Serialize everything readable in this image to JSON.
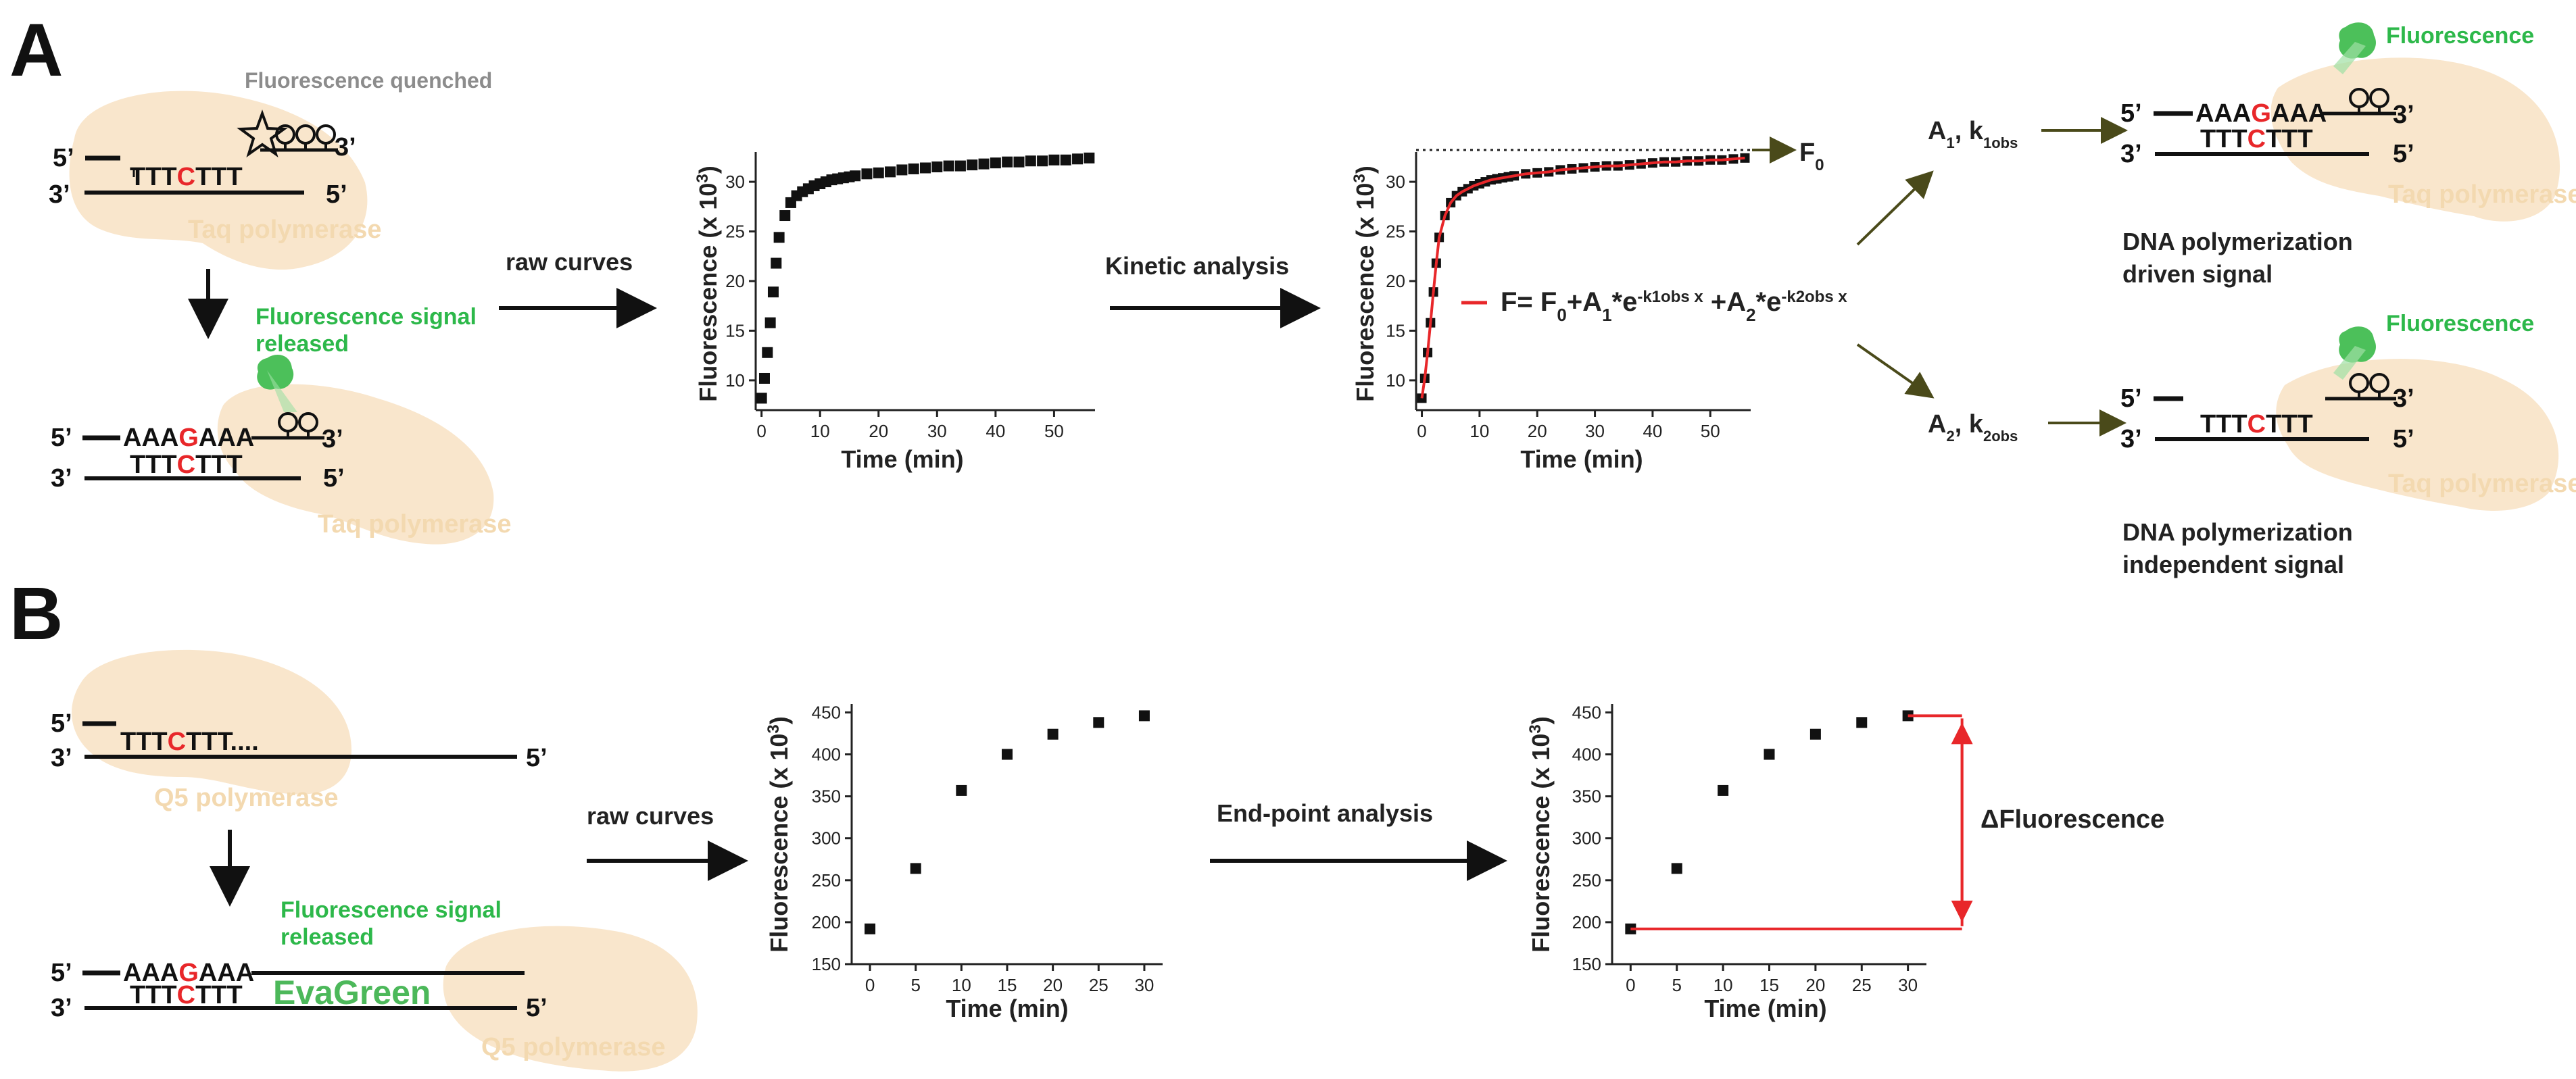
{
  "panels": {
    "a": "A",
    "b": "B"
  },
  "labels": {
    "quenched": "Fluorescence quenched",
    "signal_released_1": "Fluorescence signal",
    "signal_released_2": "released",
    "taq": "Taq polymerase",
    "q5": "Q5 polymerase",
    "evagreen": "EvaGreen",
    "fluorescence": "Fluorescence",
    "raw_curves": "raw curves",
    "kinetic": "Kinetic analysis",
    "endpoint": "End-point analysis",
    "driven_1": "DNA polymerization",
    "driven_2": "driven signal",
    "indep_1": "DNA polymerization",
    "indep_2": "independent signal",
    "delta": "ΔFluorescence",
    "f0": "F",
    "f0_sub": "0",
    "a1": "A",
    "a1_sub": "1",
    "k1": ", k",
    "k1_sub": "1obs",
    "a2": "A",
    "a2_sub": "2",
    "k2": ", k",
    "k2_sub": "2obs",
    "five_prime": "5’",
    "three_prime": "3’",
    "equation": {
      "p1": "F= F",
      "s0": "0",
      "p2": "+A",
      "s1": "1",
      "p3": "*e",
      "e1": "-k1obs x",
      "p4": " +A",
      "s2": "2",
      "p5": "*e",
      "e2": "-k2obs x"
    }
  },
  "seq": {
    "ttt_pre": "TTT",
    "c": "C",
    "ttt_post": "TTT",
    "aaa_pre": "AAA",
    "g": "G",
    "aaa_post": "AAA",
    "dots": "...."
  },
  "colors": {
    "accent_red": "#e8272a",
    "green": "#2db84a",
    "enzyme": "#f9e6cc",
    "arrow_olive": "#4a4a1a"
  },
  "axis_text": {
    "ylabel_main": "Fluorescence (x 10",
    "ylabel_exp": "3",
    "ylabel_close": ")",
    "xlabel": "Time (min)"
  },
  "chart_data": [
    {
      "type": "scatter",
      "id": "kinetic_raw",
      "xlabel": "Time (min)",
      "ylabel": "Fluorescence (x 10^3)",
      "xlim": [
        -1,
        57
      ],
      "ylim": [
        7,
        33
      ],
      "xticks": [
        0,
        10,
        20,
        30,
        40,
        50
      ],
      "yticks": [
        10,
        15,
        20,
        25,
        30
      ],
      "x": [
        0,
        0.5,
        1,
        1.5,
        2,
        2.5,
        3,
        4,
        5,
        6,
        7,
        8,
        9,
        10,
        11,
        12,
        13,
        14,
        15,
        16,
        18,
        20,
        22,
        24,
        26,
        28,
        30,
        32,
        34,
        36,
        38,
        40,
        42,
        44,
        46,
        48,
        50,
        52,
        54,
        56
      ],
      "y": [
        8.2,
        10.2,
        12.8,
        15.8,
        18.9,
        21.8,
        24.4,
        26.6,
        27.9,
        28.6,
        29.0,
        29.3,
        29.6,
        29.8,
        30.0,
        30.2,
        30.3,
        30.4,
        30.5,
        30.6,
        30.8,
        30.9,
        31.0,
        31.2,
        31.3,
        31.4,
        31.5,
        31.6,
        31.6,
        31.7,
        31.8,
        31.9,
        32.0,
        32.0,
        32.1,
        32.1,
        32.2,
        32.2,
        32.3,
        32.4
      ]
    },
    {
      "type": "scatter",
      "id": "kinetic_fit",
      "xlabel": "Time (min)",
      "ylabel": "Fluorescence (x 10^3)",
      "xlim": [
        -1,
        57
      ],
      "ylim": [
        7,
        33
      ],
      "xticks": [
        0,
        10,
        20,
        30,
        40,
        50
      ],
      "yticks": [
        10,
        15,
        20,
        25,
        30
      ],
      "x": [
        0,
        0.5,
        1,
        1.5,
        2,
        2.5,
        3,
        4,
        5,
        6,
        7,
        8,
        9,
        10,
        11,
        12,
        13,
        14,
        15,
        16,
        18,
        20,
        22,
        24,
        26,
        28,
        30,
        32,
        34,
        36,
        38,
        40,
        42,
        44,
        46,
        48,
        50,
        52,
        54,
        56
      ],
      "y": [
        8.2,
        10.2,
        12.8,
        15.8,
        18.9,
        21.8,
        24.4,
        26.6,
        27.9,
        28.6,
        29.0,
        29.3,
        29.6,
        29.8,
        30.0,
        30.2,
        30.3,
        30.4,
        30.5,
        30.6,
        30.8,
        30.9,
        31.0,
        31.2,
        31.3,
        31.4,
        31.5,
        31.6,
        31.6,
        31.7,
        31.8,
        31.9,
        32.0,
        32.0,
        32.1,
        32.1,
        32.2,
        32.2,
        32.3,
        32.4
      ],
      "f0": 33.2
    },
    {
      "type": "scatter",
      "id": "endpoint_raw",
      "xlabel": "Time (min)",
      "ylabel": "Fluorescence (x 10^3)",
      "xlim": [
        -2,
        32
      ],
      "ylim": [
        150,
        460
      ],
      "xticks": [
        0,
        5,
        10,
        15,
        20,
        25,
        30
      ],
      "yticks": [
        150,
        200,
        250,
        300,
        350,
        400,
        450
      ],
      "x": [
        0,
        5,
        10,
        15,
        20,
        25,
        30
      ],
      "y": [
        192,
        264,
        357,
        400,
        424,
        438,
        446
      ]
    },
    {
      "type": "scatter",
      "id": "endpoint_delta",
      "xlabel": "Time (min)",
      "ylabel": "Fluorescence (x 10^3)",
      "xlim": [
        -2,
        32
      ],
      "ylim": [
        150,
        460
      ],
      "xticks": [
        0,
        5,
        10,
        15,
        20,
        25,
        30
      ],
      "yticks": [
        150,
        200,
        250,
        300,
        350,
        400,
        450
      ],
      "x": [
        0,
        5,
        10,
        15,
        20,
        25,
        30
      ],
      "y": [
        192,
        264,
        357,
        400,
        424,
        438,
        446
      ]
    }
  ]
}
